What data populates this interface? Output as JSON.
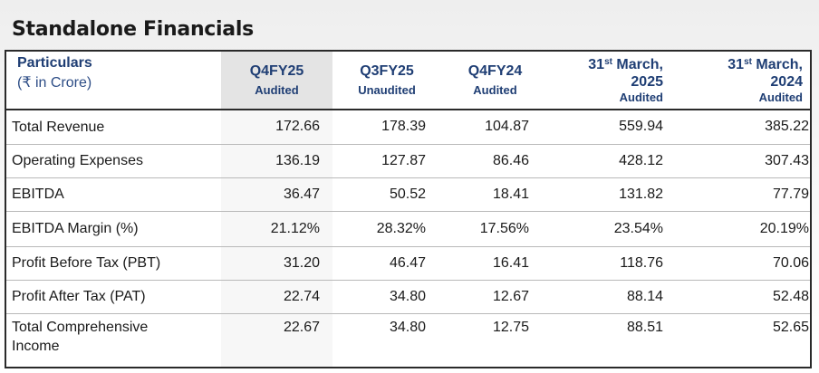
{
  "title": "Standalone Financials",
  "header": {
    "particulars": "Particulars",
    "unit": "(₹ in Crore)",
    "columns": [
      {
        "main": "Q4FY25",
        "sub": "Audited"
      },
      {
        "main": "Q3FY25",
        "sub": "Unaudited"
      },
      {
        "main": "Q4FY24",
        "sub": "Audited"
      },
      {
        "day": "31",
        "sup": "st",
        "month": " March,",
        "year": "2025",
        "sub": "Audited"
      },
      {
        "day": "31",
        "sup": "st",
        "month": " March,",
        "year": "2024",
        "sub": "Audited"
      }
    ]
  },
  "rows": [
    {
      "label": "Total Revenue",
      "values": [
        "172.66",
        "178.39",
        "104.87",
        "559.94",
        "385.22"
      ]
    },
    {
      "label": "Operating Expenses",
      "values": [
        "136.19",
        "127.87",
        "86.46",
        "428.12",
        "307.43"
      ]
    },
    {
      "label": "EBITDA",
      "values": [
        "36.47",
        "50.52",
        "18.41",
        "131.82",
        "77.79"
      ]
    },
    {
      "label": "EBITDA Margin (%)",
      "values": [
        "21.12%",
        "28.32%",
        "17.56%",
        "23.54%",
        "20.19%"
      ]
    },
    {
      "label": "Profit Before Tax (PBT)",
      "values": [
        "31.20",
        "46.47",
        "16.41",
        "118.76",
        "70.06"
      ]
    },
    {
      "label": "Profit After Tax (PAT)",
      "values": [
        "22.74",
        "34.80",
        "12.67",
        "88.14",
        "52.48"
      ]
    },
    {
      "label_line1": "Total Comprehensive",
      "label_line2": "Income",
      "values": [
        "22.67",
        "34.80",
        "12.75",
        "88.51",
        "52.65"
      ]
    }
  ]
}
